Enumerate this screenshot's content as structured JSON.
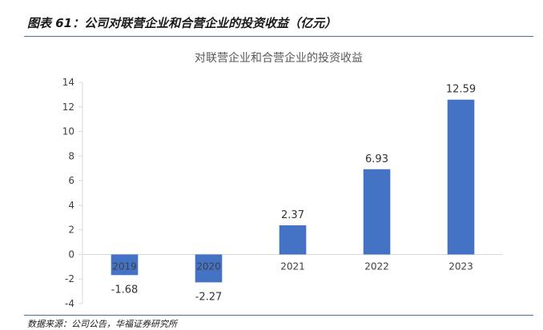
{
  "figure": {
    "title": "图表 61：公司对联营企业和合营企业的投资收益（亿元）",
    "source": "数据来源：公司公告，华福证券研究所"
  },
  "colors": {
    "bar": "#4472C4",
    "rule": "#4a6fa5",
    "axis": "#d9d9d9"
  },
  "chart_data": {
    "type": "bar",
    "title": "对联营企业和合营企业的投资收益",
    "categories": [
      "2019",
      "2020",
      "2021",
      "2022",
      "2023"
    ],
    "values": [
      -1.68,
      -2.27,
      2.37,
      6.93,
      12.59
    ],
    "value_labels": [
      "-1.68",
      "-2.27",
      "2.37",
      "6.93",
      "12.59"
    ],
    "y_ticks": [
      -4,
      -2,
      0,
      2,
      4,
      6,
      8,
      10,
      12,
      14
    ],
    "y_tick_labels": [
      "-4",
      "-2",
      "0",
      "2",
      "4",
      "6",
      "8",
      "10",
      "12",
      "14"
    ],
    "ylim": [
      -4,
      14
    ],
    "xlabel": "",
    "ylabel": "",
    "grid": false,
    "legend": "none"
  }
}
